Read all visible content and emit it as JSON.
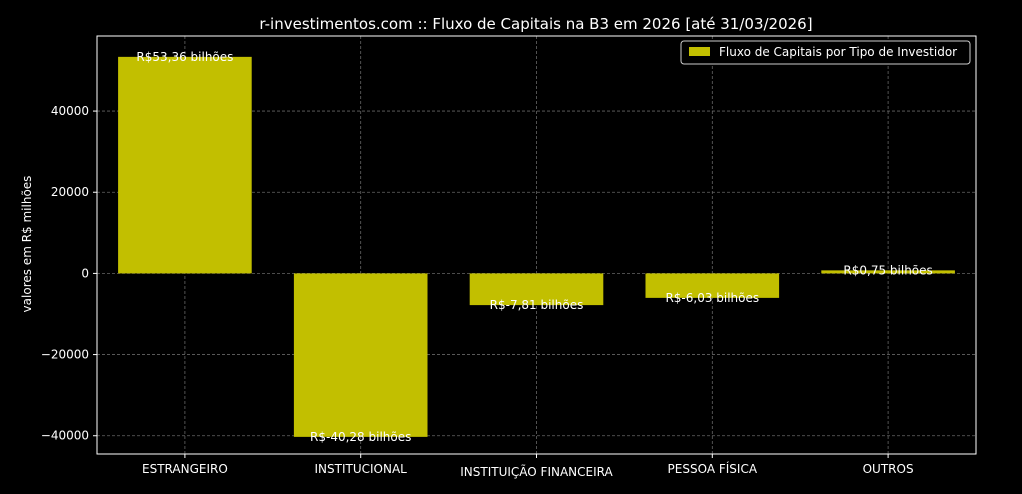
{
  "chart_data": {
    "type": "bar",
    "title": "r-investimentos.com :: Fluxo de Capitais na B3 em 2026  [até 31/03/2026]",
    "ylabel": "valores em R$ milhões",
    "xlabel": "",
    "categories": [
      "ESTRANGEIRO",
      "INSTITUCIONAL",
      "INSTITUIÇÃO FINANCEIRA",
      "PESSOA FÍSICA",
      "OUTROS"
    ],
    "series": [
      {
        "name": "Fluxo de Capitais por Tipo de Investidor",
        "values": [
          53360,
          -40280,
          -7810,
          -6030,
          750
        ]
      }
    ],
    "data_labels": [
      "R$53,36 bilhões",
      "R$-40,28 bilhões",
      "R$-7,81 bilhões",
      "R$-6,03 bilhões",
      "R$0,75 bilhões"
    ],
    "y_ticks": [
      -40000,
      -20000,
      0,
      20000,
      40000
    ],
    "y_tick_labels": [
      "−40000",
      "−20000",
      "0",
      "20000",
      "40000"
    ],
    "ylim": [
      -44500,
      58500
    ],
    "grid": true,
    "legend_position": "top-right",
    "colors": {
      "bar": "#c2bf00",
      "background": "#000000",
      "text": "#ffffff",
      "grid": "#666666",
      "legend_bg": "#000000",
      "legend_border": "#cccccc"
    }
  }
}
